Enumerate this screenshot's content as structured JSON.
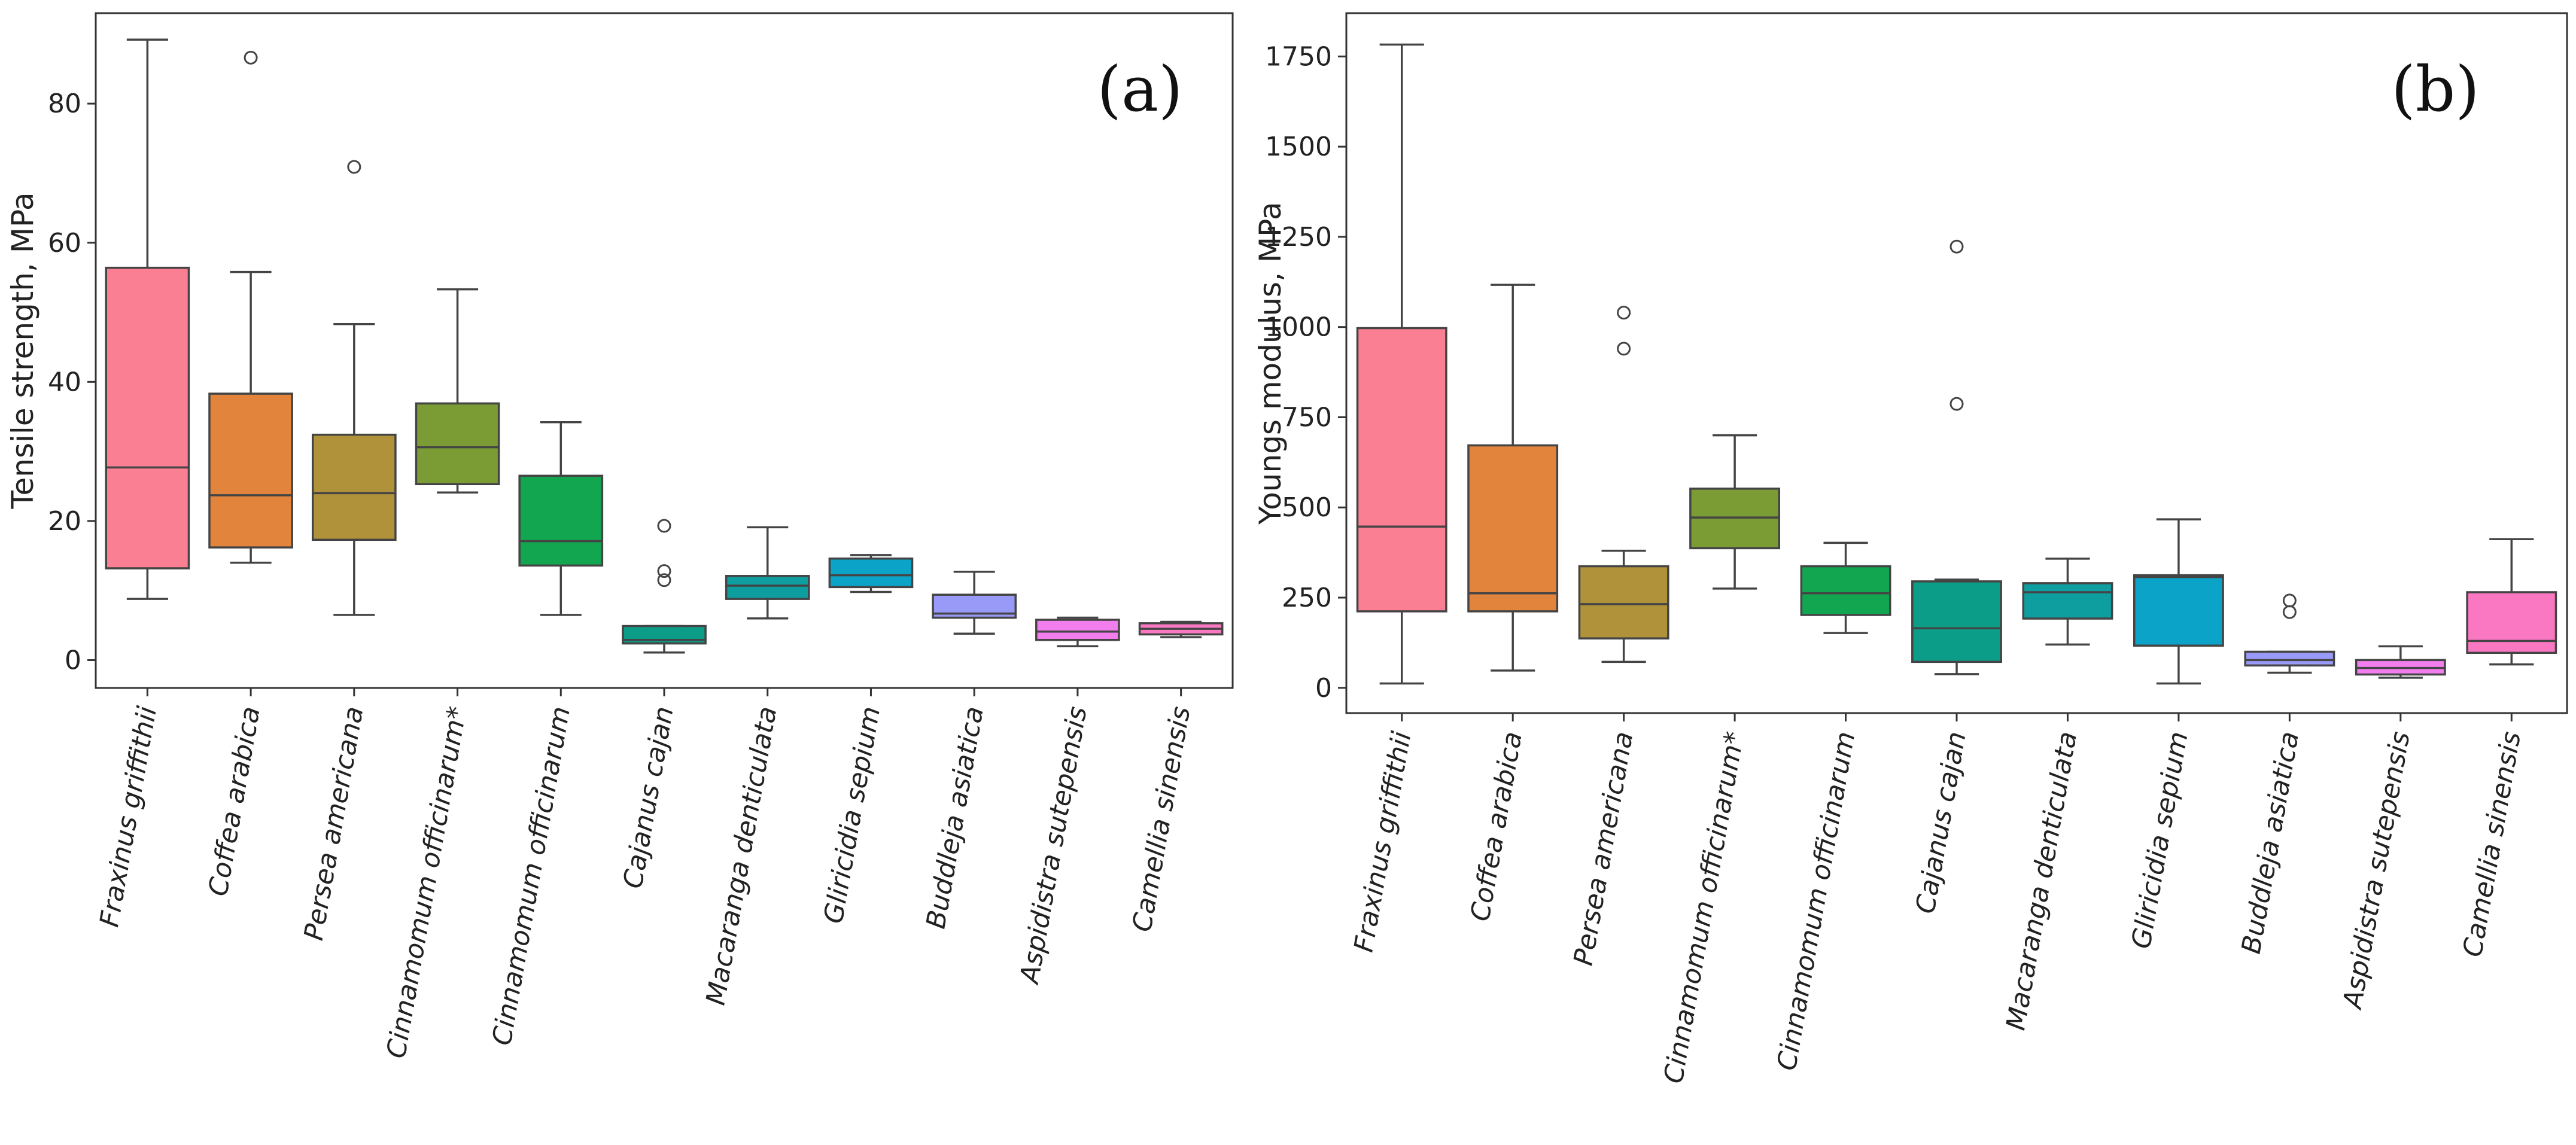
{
  "chart_data": [
    {
      "type": "box",
      "panel_label": "(a)",
      "title": "",
      "xlabel": "",
      "ylabel": "Tensile strength, MPa",
      "ylim": [
        -4,
        93
      ],
      "yticks": [
        0,
        20,
        40,
        60,
        80
      ],
      "grid": false,
      "categories": [
        "Fraxinus griffithii",
        "Coffea arabica",
        "Persea americana",
        "Cinnamomum officinarum*",
        "Cinnamomum officinarum",
        "Cajanus cajan",
        "Macaranga denticulata",
        "Gliricidia sepium",
        "Buddleja asiatica",
        "Aspidistra sutepensis",
        "Camellia sinensis"
      ],
      "boxes": [
        {
          "whisker_low": 8.8,
          "q1": 13.2,
          "median": 27.7,
          "q3": 56.4,
          "whisker_high": 89.2,
          "outliers": []
        },
        {
          "whisker_low": 14.0,
          "q1": 16.2,
          "median": 23.7,
          "q3": 38.3,
          "whisker_high": 55.8,
          "outliers": [
            86.6
          ]
        },
        {
          "whisker_low": 6.5,
          "q1": 17.3,
          "median": 24.0,
          "q3": 32.4,
          "whisker_high": 48.3,
          "outliers": [
            70.9
          ]
        },
        {
          "whisker_low": 24.1,
          "q1": 25.3,
          "median": 30.6,
          "q3": 36.9,
          "whisker_high": 53.3,
          "outliers": []
        },
        {
          "whisker_low": 6.5,
          "q1": 13.6,
          "median": 17.1,
          "q3": 26.5,
          "whisker_high": 34.2,
          "outliers": []
        },
        {
          "whisker_low": 1.1,
          "q1": 2.4,
          "median": 2.9,
          "q3": 4.9,
          "whisker_high": 4.9,
          "outliers": [
            19.3,
            12.8,
            11.5
          ]
        },
        {
          "whisker_low": 6.0,
          "q1": 8.8,
          "median": 10.7,
          "q3": 12.1,
          "whisker_high": 19.1,
          "outliers": []
        },
        {
          "whisker_low": 9.8,
          "q1": 10.5,
          "median": 12.2,
          "q3": 14.6,
          "whisker_high": 15.1,
          "outliers": []
        },
        {
          "whisker_low": 3.8,
          "q1": 6.1,
          "median": 6.7,
          "q3": 9.4,
          "whisker_high": 12.7,
          "outliers": []
        },
        {
          "whisker_low": 2.0,
          "q1": 2.9,
          "median": 4.1,
          "q3": 5.8,
          "whisker_high": 6.1,
          "outliers": []
        },
        {
          "whisker_low": 3.3,
          "q1": 3.7,
          "median": 4.5,
          "q3": 5.3,
          "whisker_high": 5.5,
          "outliers": []
        }
      ]
    },
    {
      "type": "box",
      "panel_label": "(b)",
      "title": "",
      "xlabel": "",
      "ylabel": "Youngs modulus, MPa",
      "ylim": [
        -70,
        1870
      ],
      "yticks": [
        0,
        250,
        500,
        750,
        1000,
        1250,
        1500,
        1750
      ],
      "grid": false,
      "categories": [
        "Fraxinus griffithii",
        "Coffea arabica",
        "Persea americana",
        "Cinnamomum officinarum*",
        "Cinnamomum officinarum",
        "Cajanus cajan",
        "Macaranga denticulata",
        "Gliricidia sepium",
        "Buddleja asiatica",
        "Aspidistra sutepensis",
        "Camellia sinensis"
      ],
      "boxes": [
        {
          "whisker_low": 12,
          "q1": 212,
          "median": 447,
          "q3": 997,
          "whisker_high": 1783,
          "outliers": []
        },
        {
          "whisker_low": 48,
          "q1": 212,
          "median": 262,
          "q3": 672,
          "whisker_high": 1117,
          "outliers": []
        },
        {
          "whisker_low": 72,
          "q1": 137,
          "median": 232,
          "q3": 337,
          "whisker_high": 380,
          "outliers": [
            1040,
            940
          ]
        },
        {
          "whisker_low": 275,
          "q1": 387,
          "median": 472,
          "q3": 552,
          "whisker_high": 700,
          "outliers": []
        },
        {
          "whisker_low": 152,
          "q1": 202,
          "median": 262,
          "q3": 337,
          "whisker_high": 402,
          "outliers": []
        },
        {
          "whisker_low": 38,
          "q1": 72,
          "median": 165,
          "q3": 295,
          "whisker_high": 300,
          "outliers": [
            1223,
            787
          ]
        },
        {
          "whisker_low": 120,
          "q1": 192,
          "median": 265,
          "q3": 290,
          "whisker_high": 358,
          "outliers": []
        },
        {
          "whisker_low": 12,
          "q1": 117,
          "median": 307,
          "q3": 312,
          "whisker_high": 467,
          "outliers": []
        },
        {
          "whisker_low": 42,
          "q1": 62,
          "median": 77,
          "q3": 100,
          "whisker_high": 100,
          "outliers": [
            242,
            210
          ]
        },
        {
          "whisker_low": 28,
          "q1": 37,
          "median": 55,
          "q3": 77,
          "whisker_high": 115,
          "outliers": []
        },
        {
          "whisker_low": 65,
          "q1": 97,
          "median": 130,
          "q3": 265,
          "whisker_high": 412,
          "outliers": []
        }
      ]
    }
  ],
  "colors": [
    "#fb7f93",
    "#e3843c",
    "#b0923b",
    "#7b9c34",
    "#13a650",
    "#0c9d88",
    "#0f9ea0",
    "#0ba3c8",
    "#999af7",
    "#f27ded",
    "#fa78c2"
  ],
  "line_color": "#444444"
}
